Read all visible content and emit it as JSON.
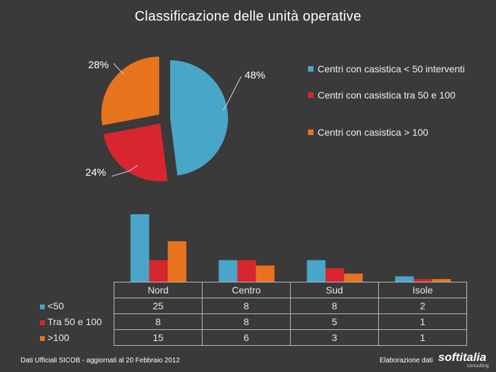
{
  "title": "Classificazione delle unità operative",
  "colors": {
    "blue": "#4aa6c8",
    "red": "#d7262e",
    "orange": "#e8731f",
    "background": "#3a3a3a"
  },
  "chart_data": [
    {
      "type": "pie",
      "title": "Classificazione delle unità operative",
      "slices": [
        {
          "label": "Centri con casistica < 50 interventi",
          "value": 48,
          "display": "48%",
          "color": "#4aa6c8"
        },
        {
          "label": "Centri con casistica tra 50 e 100",
          "value": 24,
          "display": "24%",
          "color": "#d7262e"
        },
        {
          "label": "Centri con casistica > 100",
          "value": 28,
          "display": "28%",
          "color": "#e8731f"
        }
      ],
      "legend_position": "right"
    },
    {
      "type": "bar",
      "categories": [
        "Nord",
        "Centro",
        "Sud",
        "Isole"
      ],
      "series": [
        {
          "name": "<50",
          "values": [
            25,
            8,
            8,
            2
          ],
          "color": "#4aa6c8"
        },
        {
          "name": "Tra 50 e 100",
          "values": [
            8,
            8,
            5,
            1
          ],
          "color": "#d7262e"
        },
        {
          "name": ">100",
          "values": [
            15,
            6,
            3,
            1
          ],
          "color": "#e8731f"
        }
      ],
      "grid": false,
      "data_table": true
    }
  ],
  "footer": {
    "source": "Dati Ufficiali SICOB - aggiornati al 20 Febbraio 2012",
    "credit": "Elaborazione dati",
    "logo": "softitalia",
    "logo_sub": "consulting"
  }
}
